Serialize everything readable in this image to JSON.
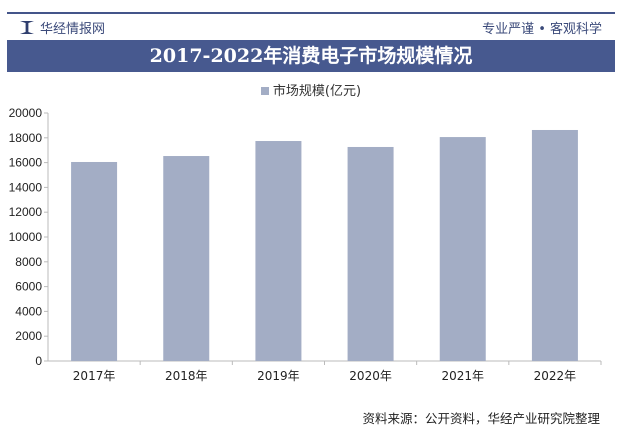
{
  "header": {
    "brand": "华经情报网",
    "slogan": "专业严谨 • 客观科学"
  },
  "title": "2017-2022年消费电子市场规模情况",
  "source": "资料来源：公开资料，华经产业研究院整理",
  "colors": {
    "bar": "#a3adc5",
    "title_bg": "#47598f"
  },
  "chart_data": {
    "type": "bar",
    "title": "2017-2022年消费电子市场规模情况",
    "categories": [
      "2017年",
      "2018年",
      "2019年",
      "2020年",
      "2021年",
      "2022年"
    ],
    "series": [
      {
        "name": "市场规模(亿元)",
        "values": [
          16050,
          16530,
          17740,
          17260,
          18060,
          18630
        ]
      }
    ],
    "ylim": [
      0,
      20000
    ],
    "yticks": [
      0,
      2000,
      4000,
      6000,
      8000,
      10000,
      12000,
      14000,
      16000,
      18000,
      20000
    ],
    "legend": "top",
    "grid": false
  }
}
